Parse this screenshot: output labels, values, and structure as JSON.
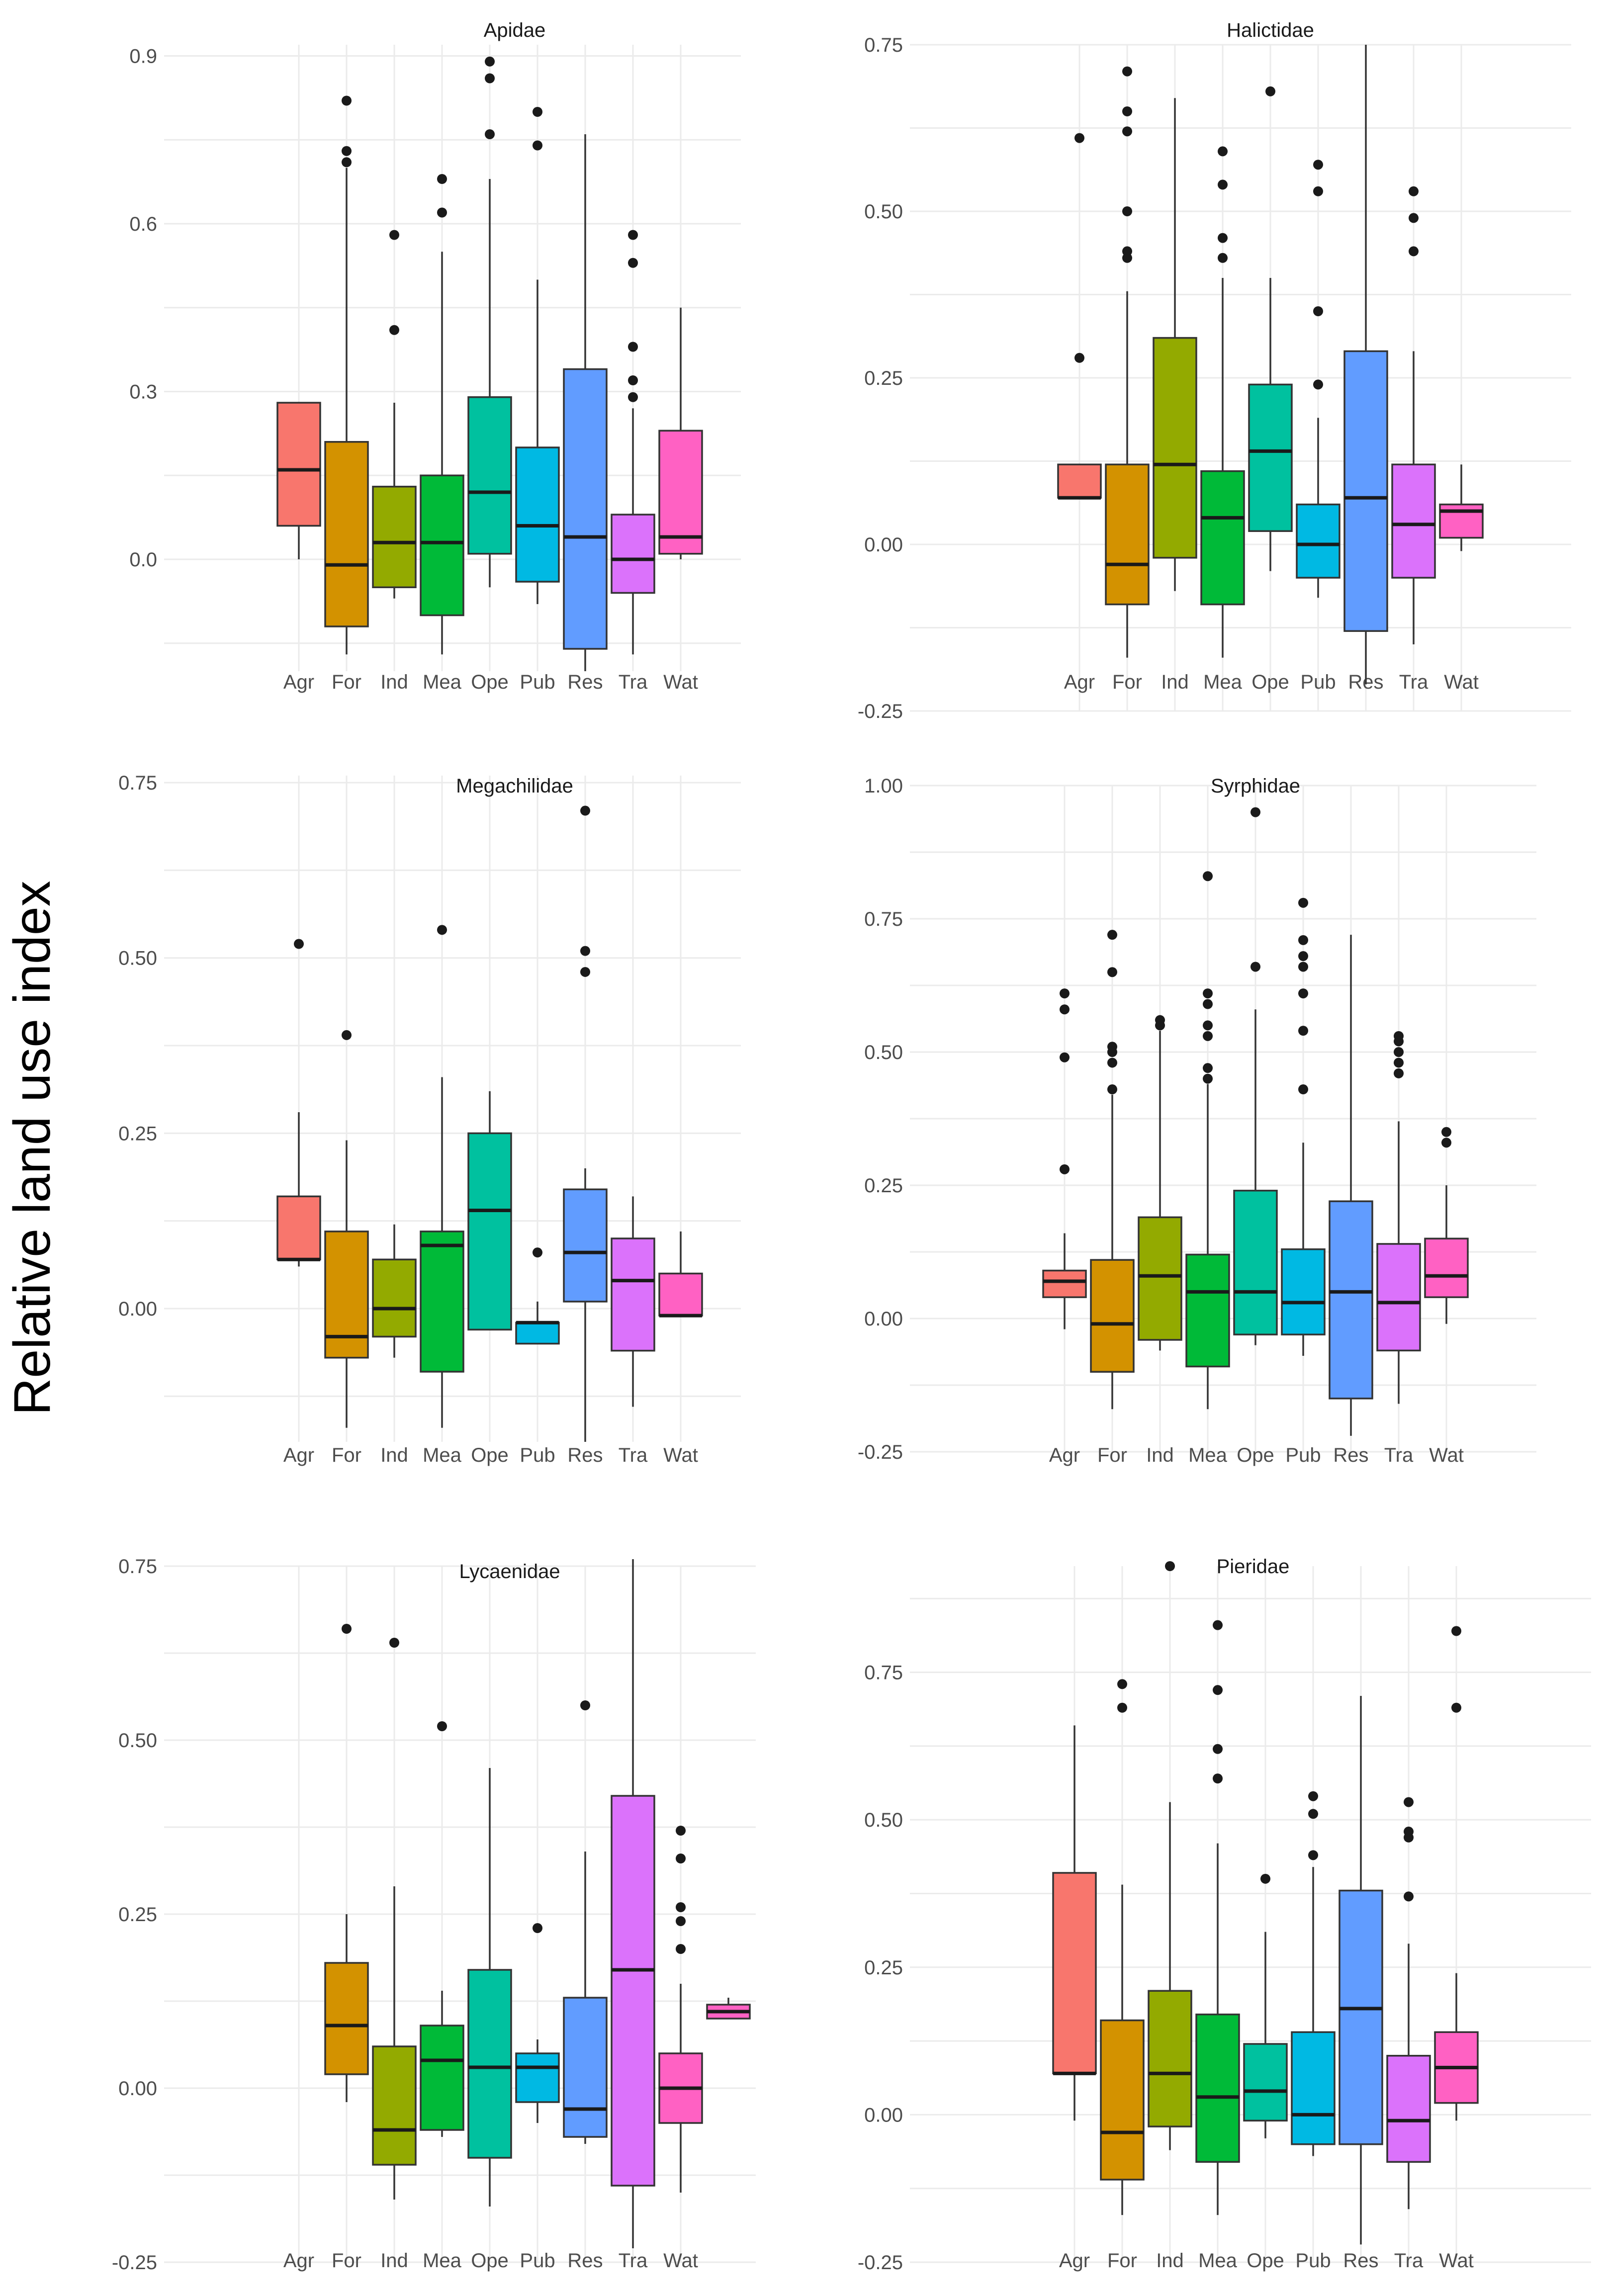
{
  "figure": {
    "ylabel": "Relative  land use index"
  },
  "colors": {
    "Agr": "#F8766D",
    "For": "#D39200",
    "Ind": "#93AA00",
    "Mea": "#00BA38",
    "Ope": "#00C19F",
    "Pub": "#00B9E3",
    "Res": "#619CFF",
    "Tra": "#DB72FB",
    "Wat": "#FF61C3",
    "grid": "#EBEBEB",
    "box_line": "#333333",
    "outlier": "#1a1a1a"
  },
  "chart_data": [
    {
      "type": "box",
      "title": "Apidae",
      "categories": [
        "Agr",
        "For",
        "Ind",
        "Mea",
        "Ope",
        "Pub",
        "Res",
        "Tra",
        "Wat"
      ],
      "ylim": [
        -0.2,
        0.92
      ],
      "yticks": [
        0.0,
        0.3,
        0.6,
        0.9
      ],
      "ytick_labels": [
        "0.0",
        "0.3",
        "0.6",
        "0.9"
      ],
      "boxes": [
        {
          "cat": "Agr",
          "wlo": 0.0,
          "q1": 0.06,
          "med": 0.16,
          "q3": 0.28,
          "whi": 0.28,
          "out": []
        },
        {
          "cat": "For",
          "wlo": -0.17,
          "q1": -0.12,
          "med": -0.01,
          "q3": 0.21,
          "whi": 0.7,
          "out": [
            0.71,
            0.73,
            0.82
          ]
        },
        {
          "cat": "Ind",
          "wlo": -0.07,
          "q1": -0.05,
          "med": 0.03,
          "q3": 0.13,
          "whi": 0.28,
          "out": [
            0.41,
            0.58
          ]
        },
        {
          "cat": "Mea",
          "wlo": -0.17,
          "q1": -0.1,
          "med": 0.03,
          "q3": 0.15,
          "whi": 0.55,
          "out": [
            0.62,
            0.68
          ]
        },
        {
          "cat": "Ope",
          "wlo": -0.05,
          "q1": 0.01,
          "med": 0.12,
          "q3": 0.29,
          "whi": 0.68,
          "out": [
            0.76,
            0.86,
            0.89
          ]
        },
        {
          "cat": "Pub",
          "wlo": -0.08,
          "q1": -0.04,
          "med": 0.06,
          "q3": 0.2,
          "whi": 0.5,
          "out": [
            0.74,
            0.8
          ]
        },
        {
          "cat": "Res",
          "wlo": -0.2,
          "q1": -0.16,
          "med": 0.04,
          "q3": 0.34,
          "whi": 0.76,
          "out": []
        },
        {
          "cat": "Tra",
          "wlo": -0.17,
          "q1": -0.06,
          "med": 0.0,
          "q3": 0.08,
          "whi": 0.27,
          "out": [
            0.29,
            0.32,
            0.38,
            0.53,
            0.58
          ]
        },
        {
          "cat": "Wat",
          "wlo": 0.0,
          "q1": 0.01,
          "med": 0.04,
          "q3": 0.23,
          "whi": 0.45,
          "out": []
        }
      ]
    },
    {
      "type": "box",
      "title": "Halictidae",
      "categories": [
        "Agr",
        "For",
        "Ind",
        "Mea",
        "Ope",
        "Pub",
        "Res",
        "Tra",
        "Wat"
      ],
      "ylim": [
        -0.25,
        0.75
      ],
      "yticks": [
        -0.25,
        0.0,
        0.25,
        0.5,
        0.75
      ],
      "ytick_labels": [
        "-0.25",
        "0.00",
        "0.25",
        "0.50",
        "0.75"
      ],
      "boxes": [
        {
          "cat": "Agr",
          "wlo": 0.07,
          "q1": 0.07,
          "med": 0.07,
          "q3": 0.12,
          "whi": 0.12,
          "out": [
            0.28,
            0.61
          ]
        },
        {
          "cat": "For",
          "wlo": -0.17,
          "q1": -0.09,
          "med": -0.03,
          "q3": 0.12,
          "whi": 0.38,
          "out": [
            0.43,
            0.44,
            0.5,
            0.62,
            0.65,
            0.71
          ]
        },
        {
          "cat": "Ind",
          "wlo": -0.07,
          "q1": -0.02,
          "med": 0.12,
          "q3": 0.31,
          "whi": 0.67,
          "out": []
        },
        {
          "cat": "Mea",
          "wlo": -0.17,
          "q1": -0.09,
          "med": 0.04,
          "q3": 0.11,
          "whi": 0.4,
          "out": [
            0.43,
            0.46,
            0.54,
            0.59
          ]
        },
        {
          "cat": "Ope",
          "wlo": -0.04,
          "q1": 0.02,
          "med": 0.14,
          "q3": 0.24,
          "whi": 0.4,
          "out": [
            0.68
          ]
        },
        {
          "cat": "Pub",
          "wlo": -0.08,
          "q1": -0.05,
          "med": 0.0,
          "q3": 0.06,
          "whi": 0.19,
          "out": [
            0.24,
            0.35,
            0.53,
            0.57
          ]
        },
        {
          "cat": "Res",
          "wlo": -0.21,
          "q1": -0.13,
          "med": 0.07,
          "q3": 0.29,
          "whi": 0.75,
          "out": []
        },
        {
          "cat": "Tra",
          "wlo": -0.15,
          "q1": -0.05,
          "med": 0.03,
          "q3": 0.12,
          "whi": 0.29,
          "out": [
            0.44,
            0.49,
            0.53
          ]
        },
        {
          "cat": "Wat",
          "wlo": -0.01,
          "q1": 0.01,
          "med": 0.05,
          "q3": 0.06,
          "whi": 0.12,
          "out": []
        }
      ]
    },
    {
      "type": "box",
      "title": "Megachilidae",
      "categories": [
        "Agr",
        "For",
        "Ind",
        "Mea",
        "Ope",
        "Pub",
        "Res",
        "Tra",
        "Wat"
      ],
      "ylim": [
        -0.19,
        0.76
      ],
      "yticks": [
        0.0,
        0.25,
        0.5,
        0.75
      ],
      "ytick_labels": [
        "0.00",
        "0.25",
        "0.50",
        "0.75"
      ],
      "boxes": [
        {
          "cat": "Agr",
          "wlo": 0.06,
          "q1": 0.07,
          "med": 0.07,
          "q3": 0.16,
          "whi": 0.28,
          "out": [
            0.52
          ]
        },
        {
          "cat": "For",
          "wlo": -0.17,
          "q1": -0.07,
          "med": -0.04,
          "q3": 0.11,
          "whi": 0.24,
          "out": [
            0.39
          ]
        },
        {
          "cat": "Ind",
          "wlo": -0.07,
          "q1": -0.04,
          "med": 0.0,
          "q3": 0.07,
          "whi": 0.12,
          "out": []
        },
        {
          "cat": "Mea",
          "wlo": -0.17,
          "q1": -0.09,
          "med": 0.09,
          "q3": 0.11,
          "whi": 0.33,
          "out": [
            0.54
          ]
        },
        {
          "cat": "Ope",
          "wlo": -0.03,
          "q1": -0.03,
          "med": 0.14,
          "q3": 0.25,
          "whi": 0.31,
          "out": []
        },
        {
          "cat": "Pub",
          "wlo": -0.05,
          "q1": -0.05,
          "med": -0.02,
          "q3": -0.02,
          "whi": 0.01,
          "out": [
            0.08
          ]
        },
        {
          "cat": "Res",
          "wlo": -0.19,
          "q1": 0.01,
          "med": 0.08,
          "q3": 0.17,
          "whi": 0.2,
          "out": [
            0.48,
            0.51,
            0.71
          ]
        },
        {
          "cat": "Tra",
          "wlo": -0.14,
          "q1": -0.06,
          "med": 0.04,
          "q3": 0.1,
          "whi": 0.16,
          "out": []
        },
        {
          "cat": "Wat",
          "wlo": -0.01,
          "q1": -0.01,
          "med": -0.01,
          "q3": 0.05,
          "whi": 0.11,
          "out": []
        }
      ]
    },
    {
      "type": "box",
      "title": "Syrphidae",
      "categories": [
        "Agr",
        "For",
        "Ind",
        "Mea",
        "Ope",
        "Pub",
        "Res",
        "Tra",
        "Wat"
      ],
      "ylim": [
        -0.25,
        1.0
      ],
      "yticks": [
        -0.25,
        0.0,
        0.25,
        0.5,
        0.75,
        1.0
      ],
      "ytick_labels": [
        "-0.25",
        "0.00",
        "0.25",
        "0.50",
        "0.75",
        "1.00"
      ],
      "boxes": [
        {
          "cat": "Agr",
          "wlo": -0.02,
          "q1": 0.04,
          "med": 0.07,
          "q3": 0.09,
          "whi": 0.16,
          "out": [
            0.28,
            0.49,
            0.58,
            0.61
          ]
        },
        {
          "cat": "For",
          "wlo": -0.17,
          "q1": -0.1,
          "med": -0.01,
          "q3": 0.11,
          "whi": 0.42,
          "out": [
            0.43,
            0.48,
            0.5,
            0.51,
            0.65,
            0.72
          ]
        },
        {
          "cat": "Ind",
          "wlo": -0.06,
          "q1": -0.04,
          "med": 0.08,
          "q3": 0.19,
          "whi": 0.54,
          "out": [
            0.55,
            0.56
          ]
        },
        {
          "cat": "Mea",
          "wlo": -0.17,
          "q1": -0.09,
          "med": 0.05,
          "q3": 0.12,
          "whi": 0.44,
          "out": [
            0.45,
            0.47,
            0.53,
            0.55,
            0.59,
            0.61,
            0.83
          ]
        },
        {
          "cat": "Ope",
          "wlo": -0.05,
          "q1": -0.03,
          "med": 0.05,
          "q3": 0.24,
          "whi": 0.58,
          "out": [
            0.66,
            0.95
          ]
        },
        {
          "cat": "Pub",
          "wlo": -0.07,
          "q1": -0.03,
          "med": 0.03,
          "q3": 0.13,
          "whi": 0.33,
          "out": [
            0.43,
            0.54,
            0.61,
            0.66,
            0.68,
            0.71,
            0.78
          ]
        },
        {
          "cat": "Res",
          "wlo": -0.22,
          "q1": -0.15,
          "med": 0.05,
          "q3": 0.22,
          "whi": 0.72,
          "out": []
        },
        {
          "cat": "Tra",
          "wlo": -0.16,
          "q1": -0.06,
          "med": 0.03,
          "q3": 0.14,
          "whi": 0.37,
          "out": [
            0.46,
            0.48,
            0.5,
            0.52,
            0.53
          ]
        },
        {
          "cat": "Wat",
          "wlo": -0.01,
          "q1": 0.04,
          "med": 0.08,
          "q3": 0.15,
          "whi": 0.25,
          "out": [
            0.33,
            0.35
          ]
        }
      ]
    },
    {
      "type": "box",
      "title": "Lycaenidae",
      "categories": [
        "Agr",
        "For",
        "Ind",
        "Mea",
        "Ope",
        "Pub",
        "Res",
        "Tra",
        "Wat"
      ],
      "ylim": [
        -0.25,
        0.75
      ],
      "yticks": [
        -0.25,
        0.0,
        0.25,
        0.5,
        0.75
      ],
      "ytick_labels": [
        "-0.25",
        "0.00",
        "0.25",
        "0.50",
        "0.75"
      ],
      "boxes": [
        {
          "cat": "Agr",
          "wlo": null,
          "q1": null,
          "med": null,
          "q3": null,
          "whi": null,
          "out": []
        },
        {
          "cat": "For",
          "wlo": -0.02,
          "q1": 0.02,
          "med": 0.09,
          "q3": 0.18,
          "whi": 0.25,
          "out": [
            0.66
          ]
        },
        {
          "cat": "Ind",
          "wlo": -0.16,
          "q1": -0.11,
          "med": -0.06,
          "q3": 0.06,
          "whi": 0.29,
          "out": [
            0.64
          ]
        },
        {
          "cat": "Mea",
          "wlo": -0.07,
          "q1": -0.06,
          "med": 0.04,
          "q3": 0.09,
          "whi": 0.14,
          "out": [
            0.52
          ]
        },
        {
          "cat": "Ope",
          "wlo": -0.17,
          "q1": -0.1,
          "med": 0.03,
          "q3": 0.17,
          "whi": 0.46,
          "out": []
        },
        {
          "cat": "Pub",
          "wlo": -0.05,
          "q1": -0.02,
          "med": 0.03,
          "q3": 0.05,
          "whi": 0.07,
          "out": [
            0.23
          ]
        },
        {
          "cat": "Res",
          "wlo": -0.08,
          "q1": -0.07,
          "med": -0.03,
          "q3": 0.13,
          "whi": 0.34,
          "out": [
            0.55
          ]
        },
        {
          "cat": "Tra",
          "wlo": -0.23,
          "q1": -0.14,
          "med": 0.17,
          "q3": 0.42,
          "whi": 0.76,
          "out": []
        },
        {
          "cat": "Wat",
          "wlo": -0.15,
          "q1": -0.05,
          "med": 0.0,
          "q3": 0.05,
          "whi": 0.15,
          "out": [
            0.2,
            0.24,
            0.26,
            0.33,
            0.37
          ]
        },
        {
          "cat": "Wat",
          "wlo": 0.1,
          "q1": 0.1,
          "med": 0.11,
          "q3": 0.12,
          "whi": 0.13,
          "out": [],
          "slot": 9
        }
      ]
    },
    {
      "type": "box",
      "title": "Pieridae",
      "categories": [
        "Agr",
        "For",
        "Ind",
        "Mea",
        "Ope",
        "Pub",
        "Res",
        "Tra",
        "Wat"
      ],
      "ylim": [
        -0.25,
        0.93
      ],
      "yticks": [
        -0.25,
        0.0,
        0.25,
        0.5,
        0.75
      ],
      "ytick_labels": [
        "-0.25",
        "0.00",
        "0.25",
        "0.50",
        "0.75"
      ],
      "boxes": [
        {
          "cat": "Agr",
          "wlo": -0.01,
          "q1": 0.07,
          "med": 0.07,
          "q3": 0.41,
          "whi": 0.66,
          "out": []
        },
        {
          "cat": "For",
          "wlo": -0.17,
          "q1": -0.11,
          "med": -0.03,
          "q3": 0.16,
          "whi": 0.39,
          "out": [
            0.69,
            0.73
          ]
        },
        {
          "cat": "Ind",
          "wlo": -0.06,
          "q1": -0.02,
          "med": 0.07,
          "q3": 0.21,
          "whi": 0.53,
          "out": [
            0.93
          ]
        },
        {
          "cat": "Mea",
          "wlo": -0.17,
          "q1": -0.08,
          "med": 0.03,
          "q3": 0.17,
          "whi": 0.46,
          "out": [
            0.57,
            0.62,
            0.72,
            0.83
          ]
        },
        {
          "cat": "Ope",
          "wlo": -0.04,
          "q1": -0.01,
          "med": 0.04,
          "q3": 0.12,
          "whi": 0.31,
          "out": [
            0.4
          ]
        },
        {
          "cat": "Pub",
          "wlo": -0.07,
          "q1": -0.05,
          "med": 0.0,
          "q3": 0.14,
          "whi": 0.42,
          "out": [
            0.44,
            0.51,
            0.54
          ]
        },
        {
          "cat": "Res",
          "wlo": -0.22,
          "q1": -0.05,
          "med": 0.18,
          "q3": 0.38,
          "whi": 0.71,
          "out": []
        },
        {
          "cat": "Tra",
          "wlo": -0.16,
          "q1": -0.08,
          "med": -0.01,
          "q3": 0.1,
          "whi": 0.29,
          "out": [
            0.37,
            0.47,
            0.48,
            0.53
          ]
        },
        {
          "cat": "Wat",
          "wlo": -0.01,
          "q1": 0.02,
          "med": 0.08,
          "q3": 0.14,
          "whi": 0.24,
          "out": [
            0.69,
            0.82
          ]
        }
      ]
    }
  ]
}
